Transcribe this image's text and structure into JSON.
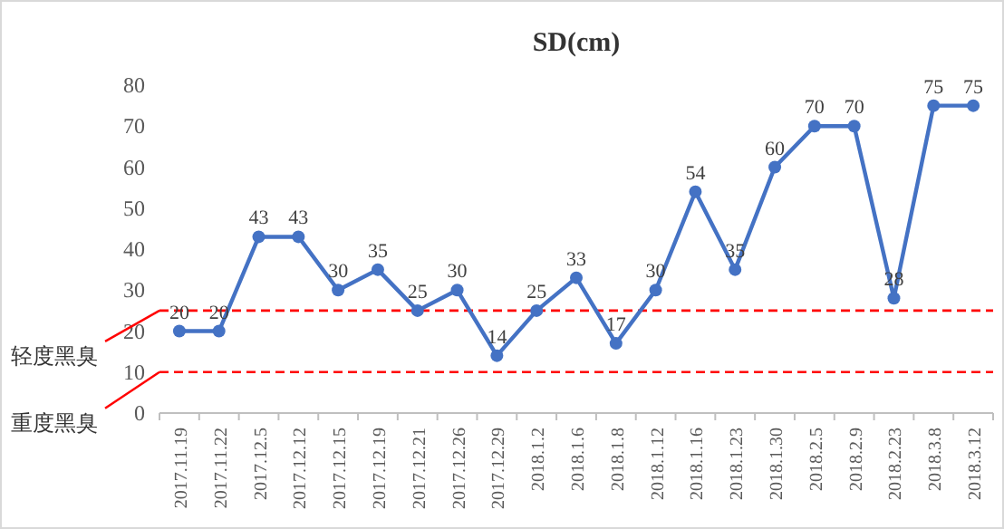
{
  "chart_data": {
    "type": "line",
    "title": "SD(cm)",
    "categories": [
      "2017.11.19",
      "2017.11.22",
      "2017.12.5",
      "2017.12.12",
      "2017.12.15",
      "2017.12.19",
      "2017.12.21",
      "2017.12.26",
      "2017.12.29",
      "2018.1.2",
      "2018.1.6",
      "2018.1.8",
      "2018.1.12",
      "2018.1.16",
      "2018.1.23",
      "2018.1.30",
      "2018.2.5",
      "2018.2.9",
      "2018.2.23",
      "2018.3.8",
      "2018.3.12"
    ],
    "values": [
      20,
      20,
      43,
      43,
      30,
      35,
      25,
      30,
      14,
      25,
      33,
      17,
      30,
      54,
      35,
      60,
      70,
      70,
      28,
      75,
      75
    ],
    "color": "#4472c4",
    "marker": "circle",
    "data_labels": true,
    "ylim": [
      0,
      80
    ],
    "yticks": [
      0,
      10,
      20,
      30,
      40,
      50,
      60,
      70,
      80
    ],
    "ref_lines": [
      {
        "axis": "y",
        "value": 25,
        "label": "轻度黑臭",
        "color": "#ff0000",
        "line_style": "dashed"
      },
      {
        "axis": "y",
        "value": 10,
        "label": "重度黑臭",
        "color": "#ff0000",
        "line_style": "dashed"
      }
    ]
  }
}
